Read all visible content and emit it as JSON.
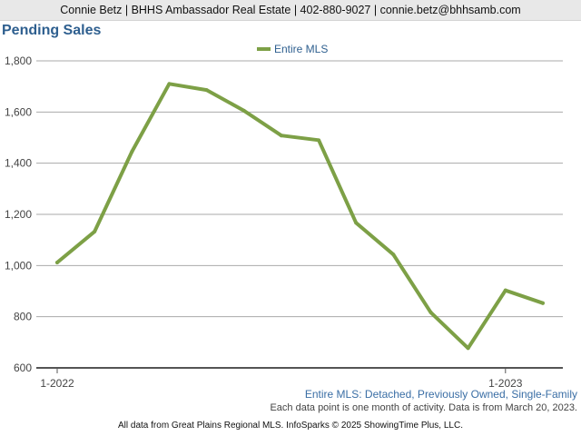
{
  "header": {
    "contact_line": "Connie Betz | BHHS Ambassador Real Estate | 402-880-9027 | connie.betz@bhhsamb.com"
  },
  "chart_title": "Pending Sales",
  "chart_data": {
    "type": "line",
    "title": "Pending Sales",
    "xlabel": "",
    "ylabel": "",
    "x": [
      "1-2022",
      "2-2022",
      "3-2022",
      "4-2022",
      "5-2022",
      "6-2022",
      "7-2022",
      "8-2022",
      "9-2022",
      "10-2022",
      "11-2022",
      "12-2022",
      "1-2023",
      "2-2023"
    ],
    "x_tick_labels": [
      "1-2022",
      "1-2023"
    ],
    "series": [
      {
        "name": "Entire MLS",
        "color": "#7da046",
        "values": [
          1012,
          1133,
          1445,
          1710,
          1686,
          1605,
          1508,
          1490,
          1167,
          1043,
          817,
          677,
          903,
          853
        ]
      }
    ],
    "ylim": [
      600,
      1800
    ],
    "y_ticks": [
      600,
      800,
      1000,
      1200,
      1400,
      1600,
      1800
    ],
    "y_tick_labels": [
      "600",
      "800",
      "1,000",
      "1,200",
      "1,400",
      "1,600",
      "1,800"
    ],
    "grid": true,
    "legend_position": "top-center"
  },
  "notes": {
    "filter_label": "Entire MLS: Detached, Previously Owned, Single-Family",
    "activity_note": "Each data point is one month of activity. Data is from March 20, 2023.",
    "source": "All data from Great Plains Regional MLS. InfoSparks © 2025 ShowingTime Plus, LLC."
  }
}
